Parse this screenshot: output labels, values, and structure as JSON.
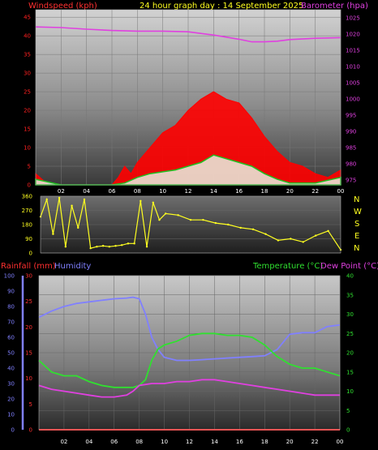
{
  "header": {
    "left_label": "Windspeed (kph)",
    "center_label": "24 hour graph day : 14 September 2025",
    "right_label": "Barometer (hpa)"
  },
  "colors": {
    "windspeed": "#ff2020",
    "gust": "#ff0000",
    "avg_wind": "#20c020",
    "barometer": "#e040e0",
    "wind_direction": "#ffff20",
    "rainfall": "#ff3030",
    "humidity": "#8080ff",
    "temperature": "#30e030",
    "dewpoint": "#e040e0"
  },
  "wind_direction_labels": [
    "N",
    "W",
    "S",
    "E",
    "N"
  ],
  "chart_data": [
    {
      "type": "area",
      "name": "wind-barometer",
      "x_ticks": [
        "02",
        "04",
        "06",
        "08",
        "10",
        "12",
        "14",
        "16",
        "18",
        "20",
        "22",
        "00"
      ],
      "left_axis": {
        "label": "Windspeed (kph)",
        "ticks": [
          0,
          5,
          10,
          15,
          20,
          25,
          30,
          35,
          40,
          45
        ],
        "ylim": [
          0,
          47
        ]
      },
      "right_axis": {
        "label": "Barometer (hpa)",
        "ticks": [
          975,
          980,
          985,
          990,
          995,
          1000,
          1005,
          1010,
          1015,
          1020,
          1025
        ],
        "ylim": [
          973.5,
          1027.5
        ]
      },
      "barometer": {
        "x": [
          0,
          2,
          4,
          6,
          8,
          10,
          12,
          14,
          16,
          17,
          18,
          19,
          20,
          22,
          24
        ],
        "values": [
          1022.2,
          1022.0,
          1021.5,
          1021.1,
          1020.9,
          1020.9,
          1020.7,
          1019.7,
          1018.4,
          1017.6,
          1017.6,
          1017.8,
          1018.3,
          1018.7,
          1018.9
        ]
      },
      "gust": {
        "x": [
          0,
          1,
          2,
          3,
          4,
          5,
          6,
          6.5,
          7,
          7.5,
          8,
          9,
          10,
          11,
          12,
          13,
          14,
          15,
          16,
          17,
          18,
          19,
          20,
          21,
          22,
          23,
          24
        ],
        "values": [
          3,
          0,
          0,
          0,
          0,
          0,
          0,
          2,
          5,
          3,
          6,
          10,
          14,
          16,
          20,
          23,
          25,
          23,
          22,
          18,
          13,
          9,
          6,
          5,
          3,
          2,
          4
        ]
      },
      "avg_wind": {
        "x": [
          0,
          2,
          4,
          6,
          7,
          8,
          9,
          10,
          11,
          12,
          13,
          14,
          15,
          16,
          17,
          18,
          19,
          20,
          22,
          24
        ],
        "values": [
          1.5,
          0,
          0,
          0,
          0.5,
          2,
          3,
          3.5,
          4,
          5,
          6,
          8,
          7,
          6,
          5,
          3,
          1.5,
          0.5,
          0.5,
          2
        ]
      }
    },
    {
      "type": "scatter",
      "name": "wind-direction",
      "y_ticks": [
        0,
        90,
        180,
        270,
        360
      ],
      "ylim": [
        0,
        360
      ],
      "x": [
        0,
        0.5,
        1,
        1.5,
        2,
        2.5,
        3,
        3.5,
        4,
        4.5,
        5,
        5.5,
        6,
        6.5,
        7,
        7.5,
        8,
        8.5,
        9,
        9.5,
        10,
        11,
        12,
        13,
        14,
        15,
        16,
        17,
        18,
        19,
        20,
        21,
        22,
        23,
        24
      ],
      "values": [
        230,
        340,
        120,
        350,
        40,
        300,
        160,
        340,
        30,
        40,
        45,
        40,
        45,
        50,
        60,
        60,
        330,
        40,
        320,
        210,
        250,
        240,
        210,
        210,
        190,
        180,
        160,
        150,
        120,
        80,
        90,
        70,
        110,
        140,
        20
      ]
    },
    {
      "type": "line",
      "name": "humidity-temperature",
      "x_ticks": [
        "02",
        "04",
        "06",
        "08",
        "10",
        "12",
        "14",
        "16",
        "18",
        "20",
        "22",
        "00"
      ],
      "humidity_axis": {
        "label": "Humidity",
        "ticks": [
          0,
          10,
          20,
          30,
          40,
          50,
          60,
          70,
          80,
          90,
          100
        ],
        "ylim": [
          0,
          100
        ]
      },
      "rainfall_axis": {
        "label": "Rainfall (mm)",
        "ticks": [
          0,
          5,
          10,
          15,
          20,
          25,
          30
        ],
        "ylim": [
          0,
          30
        ]
      },
      "temperature_axis": {
        "label": "Temperature (°C)",
        "ticks": [
          0,
          5,
          10,
          15,
          20,
          25,
          30,
          35,
          40
        ],
        "ylim": [
          0,
          40
        ]
      },
      "dewpoint_label": "Dew Point (°C)",
      "series": [
        {
          "name": "Humidity",
          "axis": "humidity",
          "x": [
            0,
            1,
            2,
            3,
            4,
            5,
            6,
            7,
            7.5,
            8,
            8.5,
            9,
            9.5,
            10,
            11,
            12,
            13,
            14,
            15,
            16,
            17,
            18,
            19,
            20,
            21,
            22,
            23,
            24
          ],
          "values": [
            73,
            77,
            80,
            82,
            83,
            84,
            85,
            85.5,
            86,
            85,
            75,
            60,
            52,
            47,
            45,
            45,
            45.5,
            46,
            46.5,
            47,
            47.5,
            48,
            52,
            62,
            63,
            63,
            67,
            68
          ]
        },
        {
          "name": "Temperature (°C)",
          "axis": "temperature",
          "x": [
            0,
            1,
            2,
            3,
            4,
            5,
            6,
            7,
            7.5,
            8,
            8.5,
            9,
            9.5,
            10,
            11,
            12,
            13,
            14,
            15,
            16,
            17,
            18,
            19,
            20,
            21,
            22,
            23,
            24
          ],
          "values": [
            18,
            15,
            14,
            14,
            12.5,
            11.5,
            11,
            11,
            11,
            11.5,
            13,
            18,
            21,
            22,
            23,
            24.5,
            25,
            25,
            24.5,
            24.5,
            24,
            22,
            19,
            17,
            16,
            16,
            15,
            14
          ]
        },
        {
          "name": "Dew Point (°C)",
          "axis": "temperature",
          "x": [
            0,
            1,
            2,
            3,
            4,
            5,
            6,
            7,
            7.5,
            8,
            9,
            10,
            11,
            12,
            13,
            14,
            15,
            16,
            17,
            18,
            19,
            20,
            21,
            22,
            23,
            24
          ],
          "values": [
            11.5,
            10.5,
            10,
            9.5,
            9,
            8.5,
            8.5,
            9,
            10,
            11.5,
            12,
            12,
            12.5,
            12.5,
            13,
            13,
            12.5,
            12,
            11.5,
            11,
            10.5,
            10,
            9.5,
            9,
            9,
            9
          ]
        },
        {
          "name": "Rainfall (mm)",
          "axis": "rainfall",
          "x": [
            0,
            7.1,
            7.2,
            19.5,
            19.6,
            24
          ],
          "values": [
            0,
            0,
            0,
            0,
            0,
            0
          ]
        }
      ]
    }
  ]
}
